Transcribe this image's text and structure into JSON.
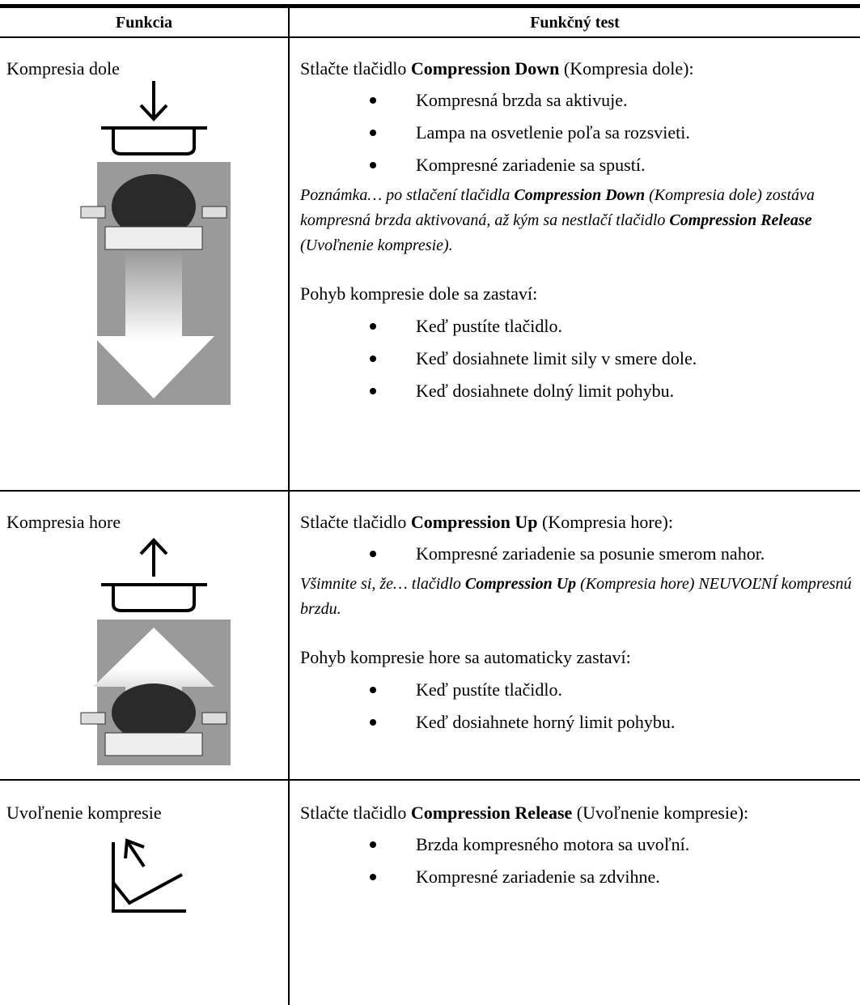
{
  "table": {
    "header": [
      "Funkcia",
      "Funkčný test"
    ],
    "rows": [
      {
        "function": "Kompresia dole",
        "intro": [
          {
            "text": "Stlačte tlačidlo ",
            "bold": false
          },
          {
            "text": "Compression Down",
            "bold": true
          },
          {
            "text": " (Kompresia dole):",
            "bold": false
          }
        ],
        "bullets": [
          "Kompresná brzda sa aktivuje.",
          "Lampa na osvetlenie poľa sa rozsvieti.",
          "Kompresné zariadenie sa spustí."
        ],
        "note": [
          {
            "text": "Poznámka… po stlačení tlačidla ",
            "bold": false
          },
          {
            "text": "Compression Down",
            "bold": true
          },
          {
            "text": " (Kompresia dole) zostáva kompresná brzda aktivovaná, až kým sa nestlačí tlačidlo ",
            "bold": false
          },
          {
            "text": "Compression Release",
            "bold": true
          },
          {
            "text": " (Uvoľnenie kompresie).",
            "bold": false
          }
        ],
        "stop": "Pohyb kompresie dole sa zastaví:",
        "stop_bullets": [
          "Keď pustíte tlačidlo.",
          "Keď dosiahnete limit sily v smere dole.",
          "Keď dosiahnete dolný limit pohybu."
        ]
      },
      {
        "function": "Kompresia hore",
        "intro": [
          {
            "text": "Stlačte tlačidlo ",
            "bold": false
          },
          {
            "text": "Compression Up",
            "bold": true
          },
          {
            "text": " (Kompresia hore):",
            "bold": false
          }
        ],
        "bullets": [
          "Kompresné zariadenie sa posunie smerom nahor."
        ],
        "note": [
          {
            "text": "Všimnite si, že… tlačidlo ",
            "bold": false
          },
          {
            "text": "Compression Up",
            "bold": true
          },
          {
            "text": " (Kompresia hore) NEUVOĽNÍ kompresnú brzdu.",
            "bold": false
          }
        ],
        "stop": "Pohyb kompresie hore sa automaticky zastaví:",
        "stop_bullets": [
          "Keď pustíte tlačidlo.",
          "Keď dosiahnete horný limit pohybu."
        ]
      },
      {
        "function": "Uvoľnenie kompresie",
        "intro": [
          {
            "text": "Stlačte tlačidlo ",
            "bold": false
          },
          {
            "text": "Compression Release",
            "bold": true
          },
          {
            "text": " (Uvoľnenie kompresie):",
            "bold": false
          }
        ],
        "bullets": [
          "Brzda kompresného motora sa uvoľní.",
          "Kompresné zariadenie sa zdvihne."
        ]
      }
    ]
  }
}
